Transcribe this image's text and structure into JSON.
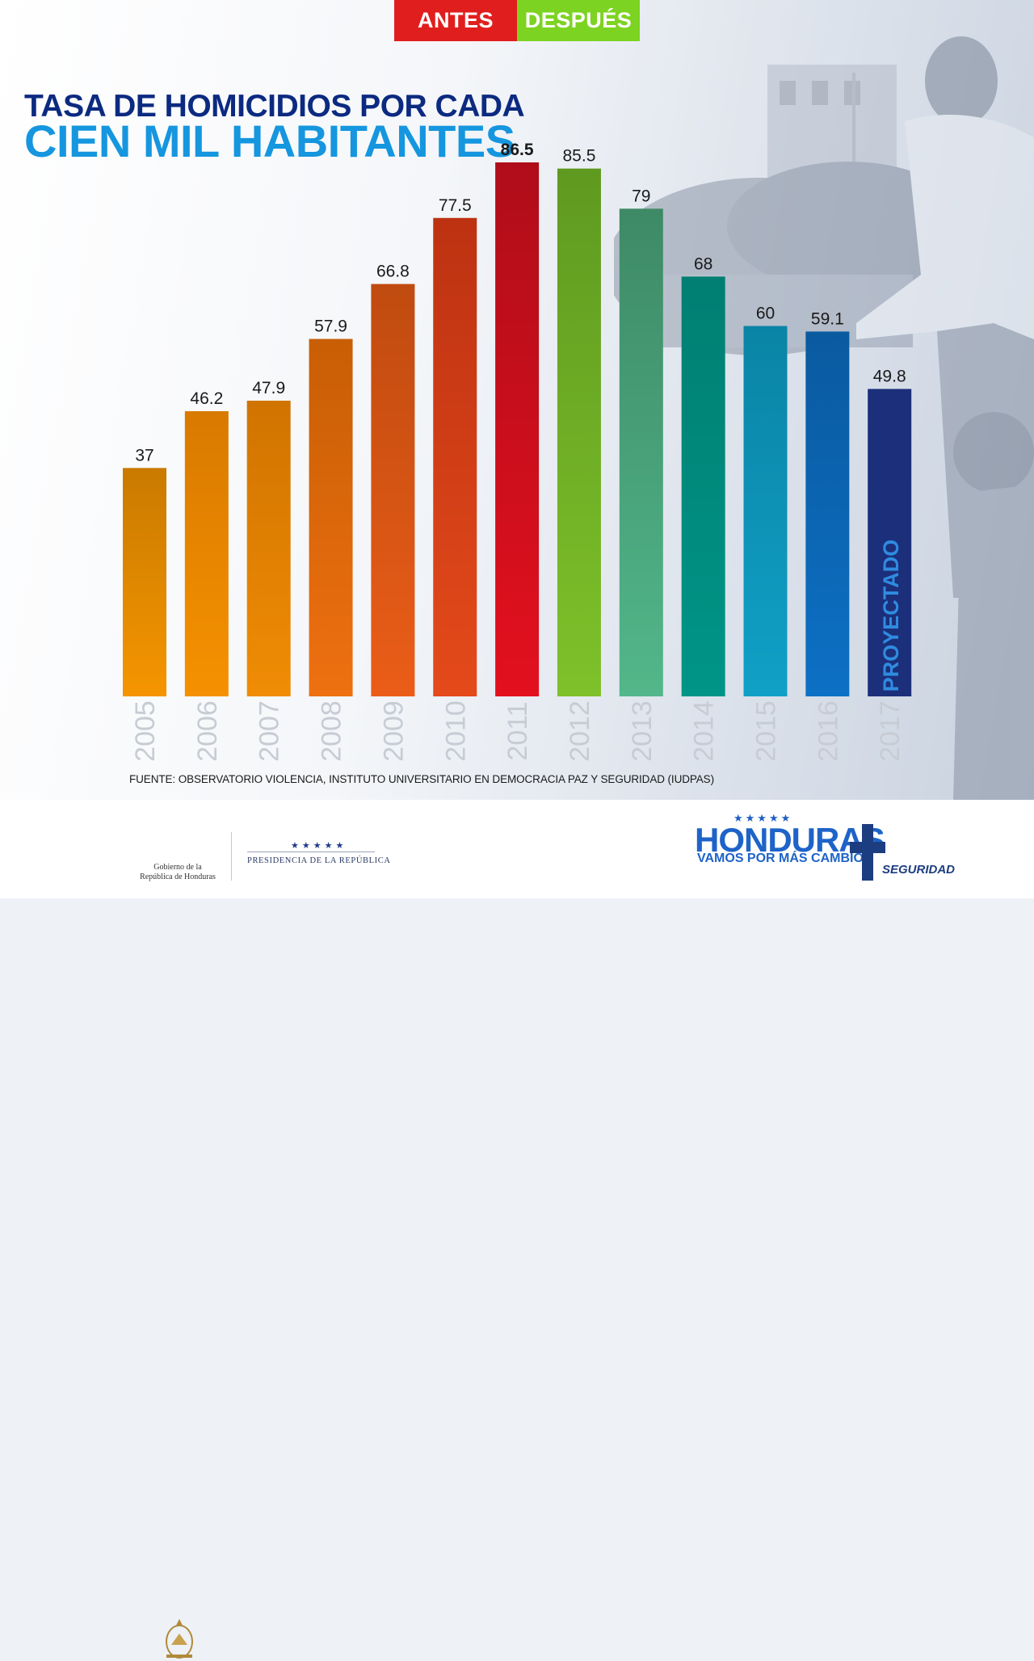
{
  "tabs": {
    "antes": "ANTES",
    "despues": "DESPUÉS"
  },
  "title": {
    "line1": "TASA DE HOMICIDIOS POR CADA",
    "line2": "CIEN MIL HABITANTES"
  },
  "chart_data": {
    "type": "bar",
    "title": "TASA DE HOMICIDIOS POR CADA CIEN MIL HABITANTES",
    "categories": [
      "2005",
      "2006",
      "2007",
      "2008",
      "2009",
      "2010",
      "2011",
      "2012",
      "2013",
      "2014",
      "2015",
      "2016",
      "2017"
    ],
    "values": [
      37,
      46.2,
      47.9,
      57.9,
      66.8,
      77.5,
      86.5,
      85.5,
      79,
      68,
      60,
      59.1,
      49.8
    ],
    "value_labels": [
      "37",
      "46.2",
      "47.9",
      "57.9",
      "66.8",
      "77.5",
      "86.5",
      "85.5",
      "79",
      "68",
      "60",
      "59.1",
      "49.8"
    ],
    "highlight_label_color": "#e3101e",
    "highlight_index": 6,
    "bar_colors": [
      [
        "#c97a00",
        "#f59500"
      ],
      [
        "#d97a00",
        "#f59100"
      ],
      [
        "#d07400",
        "#f08c05"
      ],
      [
        "#c85e05",
        "#ee7010"
      ],
      [
        "#c04b10",
        "#ea5d18"
      ],
      [
        "#bd3212",
        "#e44a1a"
      ],
      [
        "#b00d1a",
        "#e3101e"
      ],
      [
        "#5f9a20",
        "#7ec12a"
      ],
      [
        "#3e8a66",
        "#52b78a"
      ],
      [
        "#007f72",
        "#009587"
      ],
      [
        "#0a84a5",
        "#10a0c6"
      ],
      [
        "#0a5aa0",
        "#0d70c4"
      ],
      [
        "#1c2f7a",
        "#1c2f7a"
      ]
    ],
    "annotation": "PROYECTADO",
    "ylim": [
      0,
      86.5
    ]
  },
  "source": "FUENTE: OBSERVATORIO VIOLENCIA, INSTITUTO UNIVERSITARIO EN DEMOCRACIA PAZ Y SEGURIDAD (IUDPAS)",
  "footer": {
    "gobierno_line1": "Gobierno de la",
    "gobierno_line2": "República de Honduras",
    "presidencia_stars": "★★★★★",
    "presidencia": "PRESIDENCIA DE LA REPÚBLICA",
    "honduras": "HONDURAS",
    "honduras_stars": "★★★★★",
    "slogan": "VAMOS POR MÁS CAMBIOS",
    "seguridad": "SEGURIDAD"
  }
}
